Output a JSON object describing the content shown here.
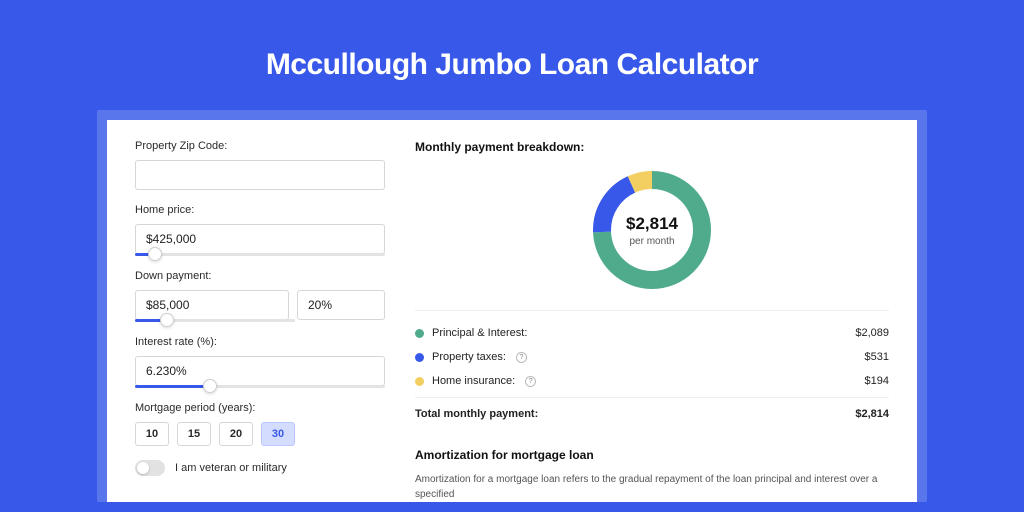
{
  "page": {
    "title": "Mccullough Jumbo Loan Calculator",
    "bg_color": "#3858e9",
    "card_shadow_color": "#5a76ed"
  },
  "form": {
    "zip": {
      "label": "Property Zip Code:",
      "value": ""
    },
    "home_price": {
      "label": "Home price:",
      "value": "$425,000",
      "slider_percent": 8
    },
    "down_payment": {
      "label": "Down payment:",
      "amount": "$85,000",
      "percent": "20%",
      "slider_percent": 20
    },
    "interest_rate": {
      "label": "Interest rate (%):",
      "value": "6.230%",
      "slider_percent": 30
    },
    "mortgage_period": {
      "label": "Mortgage period (years):",
      "options": [
        {
          "label": "10",
          "active": false
        },
        {
          "label": "15",
          "active": false
        },
        {
          "label": "20",
          "active": false
        },
        {
          "label": "30",
          "active": true
        }
      ]
    },
    "veteran": {
      "label": "I am veteran or military",
      "checked": false
    }
  },
  "breakdown": {
    "title": "Monthly payment breakdown:",
    "center_amount": "$2,814",
    "center_sub": "per month",
    "donut": {
      "segments": [
        {
          "key": "principal_interest",
          "value": 2089,
          "color": "#4fab8c"
        },
        {
          "key": "property_taxes",
          "value": 531,
          "color": "#3858e9"
        },
        {
          "key": "home_insurance",
          "value": 194,
          "color": "#f3cf62"
        }
      ],
      "stroke_width": 18
    },
    "rows": [
      {
        "label": "Principal & Interest:",
        "dot_color": "#4fab8c",
        "value": "$2,089",
        "info": false
      },
      {
        "label": "Property taxes:",
        "dot_color": "#3858e9",
        "value": "$531",
        "info": true
      },
      {
        "label": "Home insurance:",
        "dot_color": "#f3cf62",
        "value": "$194",
        "info": true
      }
    ],
    "total": {
      "label": "Total monthly payment:",
      "value": "$2,814"
    }
  },
  "amortization": {
    "title": "Amortization for mortgage loan",
    "body": "Amortization for a mortgage loan refers to the gradual repayment of the loan principal and interest over a specified"
  }
}
